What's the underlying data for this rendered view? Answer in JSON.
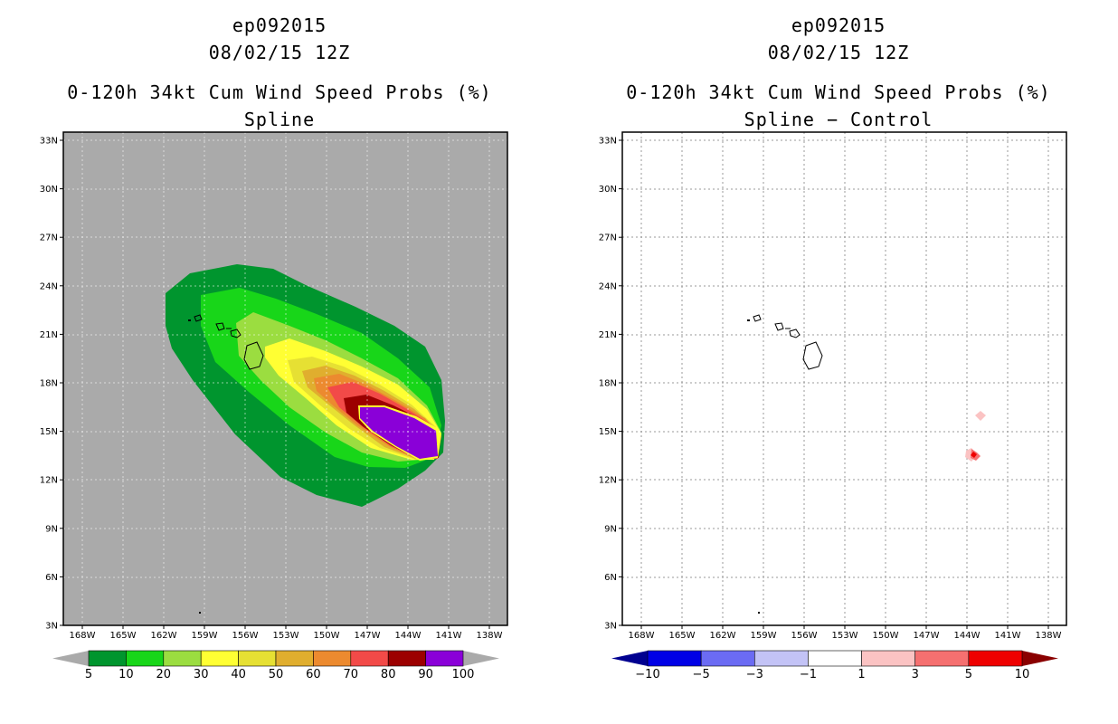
{
  "left": {
    "storm_id": "ep092015",
    "date": "08/02/15 12Z",
    "product": "0-120h 34kt Cum Wind Speed Probs (%)",
    "subtitle": "Spline",
    "colorbar": {
      "labels": [
        "5",
        "10",
        "20",
        "30",
        "40",
        "50",
        "60",
        "70",
        "80",
        "90",
        "100"
      ],
      "colors": [
        "#00952e",
        "#18d619",
        "#9bdd40",
        "#ffff33",
        "#e6e033",
        "#e0ae2e",
        "#ec8a2f",
        "#f24a48",
        "#9c0000",
        "#8a00d8"
      ],
      "underflow": "#aaaaaa",
      "overflow": "#aaaaaa"
    }
  },
  "right": {
    "storm_id": "ep092015",
    "date": "08/02/15 12Z",
    "product": "0-120h 34kt Cum Wind Speed Probs (%)",
    "subtitle": "Spline − Control",
    "colorbar": {
      "labels": [
        "−10",
        "−5",
        "−3",
        "−1",
        "1",
        "3",
        "5",
        "10"
      ],
      "colors": [
        "#0000e6",
        "#6b6bf3",
        "#c3c3f6",
        "#ffffff",
        "#fbc3c3",
        "#f57070",
        "#ee0000"
      ],
      "underflow": "#000090",
      "overflow": "#8a0000"
    }
  },
  "axes": {
    "lat_labels": [
      "33N",
      "30N",
      "27N",
      "24N",
      "21N",
      "18N",
      "15N",
      "12N",
      "9N",
      "6N",
      "3N"
    ],
    "lon_labels": [
      "168W",
      "165W",
      "162W",
      "159W",
      "156W",
      "153W",
      "150W",
      "147W",
      "144W",
      "141W",
      "138W"
    ]
  },
  "map_background": "#aaaaaa"
}
